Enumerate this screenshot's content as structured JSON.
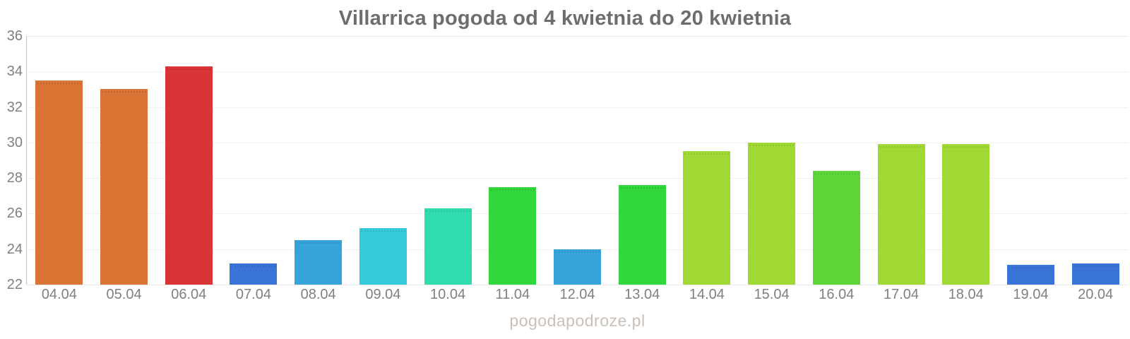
{
  "page": {
    "background_color": "#ffffff"
  },
  "title": {
    "text": "Villarrica pogoda od 4 kwietnia do 20 kwietnia",
    "color": "#6d6d6d"
  },
  "watermark": {
    "text": "pogodapodroze.pl",
    "color": "#c9c1b7"
  },
  "chart_data": {
    "type": "bar",
    "title": "Villarrica pogoda od 4 kwietnia do 20 kwietnia",
    "categories": [
      "04.04",
      "05.04",
      "06.04",
      "07.04",
      "08.04",
      "09.04",
      "10.04",
      "11.04",
      "12.04",
      "13.04",
      "14.04",
      "15.04",
      "16.04",
      "17.04",
      "18.04",
      "19.04",
      "20.04"
    ],
    "values": [
      33.5,
      33.0,
      34.3,
      23.2,
      24.5,
      25.2,
      26.3,
      27.5,
      24.0,
      27.6,
      29.5,
      30.0,
      28.4,
      29.9,
      29.9,
      23.1,
      23.2
    ],
    "bar_colors": [
      "#d97434",
      "#d97434",
      "#d93436",
      "#3a74d8",
      "#36a3db",
      "#35cbdb",
      "#30dbae",
      "#32d73c",
      "#36a3db",
      "#32d73c",
      "#a0d834",
      "#a0d834",
      "#5dd737",
      "#a0d834",
      "#a0d834",
      "#3a74d8",
      "#3a74d8"
    ],
    "xlabel": "",
    "ylabel": "",
    "ylim": [
      22,
      36
    ],
    "ytick_step": 2,
    "ytick_labels": [
      "22",
      "24",
      "26",
      "28",
      "30",
      "32",
      "34",
      "36"
    ],
    "grid": "horizontal-dotted",
    "legend_position": "none",
    "axis_line_color": "#d2c0b2",
    "gridline_color": "#e3e3e3",
    "tick_label_color": "#808080"
  }
}
